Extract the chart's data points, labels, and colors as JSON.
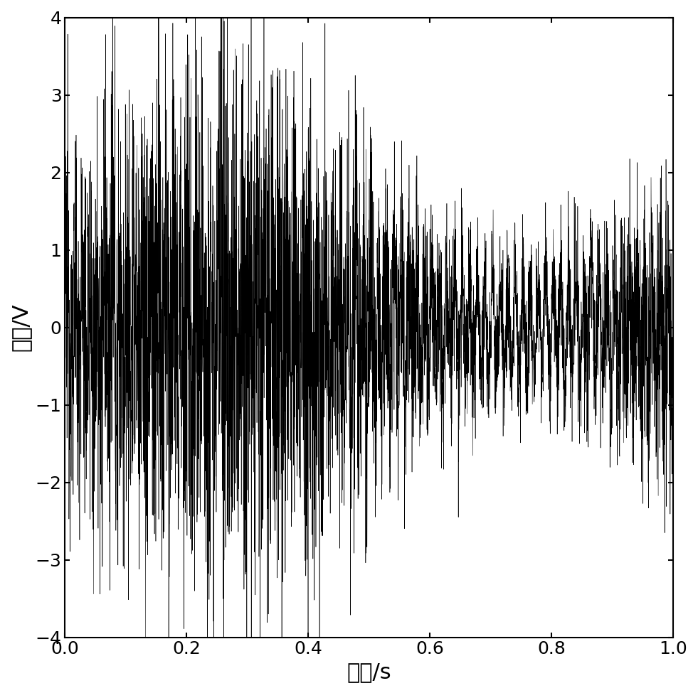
{
  "title": "",
  "xlabel": "时间/s",
  "ylabel": "幅度/V",
  "xlim": [
    0,
    1
  ],
  "ylim": [
    -4,
    4
  ],
  "xticks": [
    0,
    0.2,
    0.4,
    0.6,
    0.8,
    1.0
  ],
  "yticks": [
    -4,
    -3,
    -2,
    -1,
    0,
    1,
    2,
    3,
    4
  ],
  "num_points": 5000,
  "line_color": "#000000",
  "line_width": 0.4,
  "background_color": "#ffffff",
  "tick_fontsize": 18,
  "label_fontsize": 22,
  "seed": 12345,
  "noise_std": 1.0,
  "sine_amp": 0.6,
  "sine_freq": 1.0,
  "hf_amp": 0.6,
  "hf_freq": 80
}
